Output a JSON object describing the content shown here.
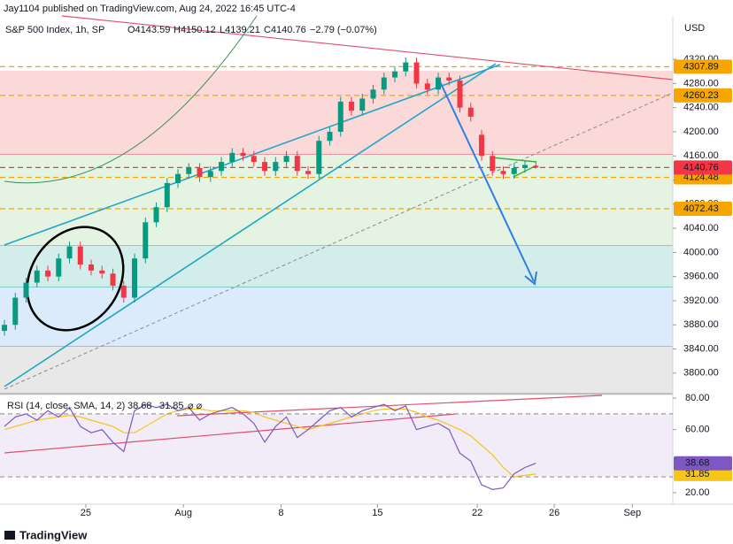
{
  "header": {
    "published": "Jay1104 published on TradingView.com, Aug 24, 2022 16:45 UTC-4",
    "brand": "TradingView"
  },
  "chart_data": [
    {
      "type": "candlestick",
      "title": "S&P 500 Index, 1h, SP",
      "currency": "USD",
      "quote": {
        "open": "O4143.59",
        "high": "H4150.12",
        "low": "L4139.21",
        "close": "C4140.76",
        "change": "−2.79 (−0.07%)"
      },
      "up_color": "#089981",
      "down_color": "#f23645",
      "open": [
        3870,
        3880,
        3925,
        3950,
        3970,
        3960,
        3990,
        4010,
        3980,
        3970,
        3965,
        3945,
        3925,
        3990,
        4050,
        4075,
        4115,
        4130,
        4140,
        4125,
        4135,
        4150,
        4165,
        4160,
        4150,
        4135,
        4150,
        4160,
        4135,
        4130,
        4185,
        4200,
        4250,
        4235,
        4255,
        4270,
        4290,
        4300,
        4315,
        4280,
        4270,
        4290,
        4285,
        4240,
        4195,
        4160,
        4135,
        4130,
        4140,
        4143.59
      ],
      "high": [
        3888,
        3933,
        3958,
        3978,
        3978,
        3998,
        4018,
        4018,
        3988,
        3978,
        3973,
        3953,
        3998,
        4058,
        4083,
        4123,
        4138,
        4148,
        4148,
        4143,
        4158,
        4173,
        4173,
        4168,
        4158,
        4158,
        4168,
        4168,
        4143,
        4193,
        4208,
        4258,
        4258,
        4263,
        4278,
        4298,
        4308,
        4323,
        4323,
        4288,
        4298,
        4298,
        4293,
        4248,
        4203,
        4168,
        4143,
        4148,
        4153,
        4150.12
      ],
      "low": [
        3862,
        3872,
        3917,
        3942,
        3952,
        3952,
        3982,
        3972,
        3962,
        3957,
        3937,
        3917,
        3917,
        3982,
        4042,
        4067,
        4107,
        4122,
        4117,
        4117,
        4127,
        4142,
        4152,
        4142,
        4127,
        4127,
        4142,
        4127,
        4122,
        4122,
        4177,
        4192,
        4227,
        4227,
        4247,
        4262,
        4282,
        4292,
        4272,
        4262,
        4262,
        4277,
        4232,
        4217,
        4152,
        4127,
        4122,
        4122,
        4132,
        4139.21
      ],
      "close": [
        3880,
        3925,
        3950,
        3970,
        3960,
        3990,
        4010,
        3980,
        3970,
        3965,
        3945,
        3925,
        3990,
        4050,
        4075,
        4115,
        4130,
        4140,
        4125,
        4135,
        4150,
        4165,
        4160,
        4150,
        4135,
        4150,
        4160,
        4135,
        4130,
        4185,
        4200,
        4250,
        4235,
        4255,
        4270,
        4290,
        4300,
        4315,
        4280,
        4270,
        4290,
        4285,
        4240,
        4225,
        4160,
        4135,
        4130,
        4140,
        4145,
        4140.76
      ],
      "xlim": [
        -0.41,
        61.63
      ],
      "xticks": [
        {
          "value": 7.5,
          "label": "25"
        },
        {
          "value": 16.5,
          "label": "Aug"
        },
        {
          "value": 25.5,
          "label": "8"
        },
        {
          "value": 34.4,
          "label": "15"
        },
        {
          "value": 43.6,
          "label": "22"
        },
        {
          "value": 50.7,
          "label": "26"
        },
        {
          "value": 57.9,
          "label": "Sep"
        }
      ],
      "ylim": [
        3766,
        4392
      ],
      "yticks": [
        {
          "value": 3800,
          "label": "3800.00"
        },
        {
          "value": 3840,
          "label": "3840.00"
        },
        {
          "value": 3880,
          "label": "3880.00"
        },
        {
          "value": 3920,
          "label": "3920.00"
        },
        {
          "value": 3960,
          "label": "3960.00"
        },
        {
          "value": 4000,
          "label": "4000.00"
        },
        {
          "value": 4040,
          "label": "4040.00"
        },
        {
          "value": 4080,
          "label": "4080.00"
        },
        {
          "value": 4120,
          "label": "4120.00"
        },
        {
          "value": 4160,
          "label": "4160.00"
        },
        {
          "value": 4200,
          "label": "4200.00"
        },
        {
          "value": 4240,
          "label": "4240.00"
        },
        {
          "value": 4280,
          "label": "4280.00"
        },
        {
          "value": 4320,
          "label": "4320.00"
        }
      ],
      "zones": [
        {
          "from": 4301,
          "to": 4162,
          "color": "#fbd9d9",
          "line": "#e0506a"
        },
        {
          "from": 4162,
          "to": 4011,
          "color": "#e4f3e2",
          "line": "#4caf50"
        },
        {
          "from": 4011,
          "to": 3942,
          "color": "#d3eeea",
          "line": "#1f9e8f"
        },
        {
          "from": 3942,
          "to": 3844,
          "color": "#dcebfb",
          "line": "#5b9bd5"
        },
        {
          "from": 3844,
          "to": 3766,
          "color": "#e8e8e8",
          "line": "#9e9e9e"
        }
      ],
      "levels": [
        {
          "value": 4307.89,
          "color": "#f7a600"
        },
        {
          "value": 4260.23,
          "color": "#f7a600"
        },
        {
          "value": 4124.48,
          "color": "#f7a600"
        },
        {
          "value": 4072.43,
          "color": "#f7a600"
        },
        {
          "value": 4140.76,
          "color": "#f23645"
        }
      ]
    },
    {
      "type": "line",
      "title": "RSI (14, close, SMA, 14, 2)",
      "ylim": [
        12.7,
        81.7
      ],
      "yticks": [
        {
          "value": 20,
          "label": "20.00"
        },
        {
          "value": 60,
          "label": "60.00"
        },
        {
          "value": 80,
          "label": "80.00"
        }
      ],
      "band": [
        30,
        70
      ],
      "series": [
        {
          "name": "RSI",
          "color": "#7e57c2",
          "current": 38.68,
          "values": [
            62,
            68,
            70,
            66,
            72,
            68,
            74,
            62,
            58,
            60,
            52,
            46,
            72,
            76,
            74,
            76,
            72,
            74,
            66,
            70,
            72,
            74,
            70,
            64,
            52,
            62,
            68,
            55,
            60,
            66,
            72,
            74,
            68,
            72,
            74,
            76,
            72,
            75,
            60,
            62,
            64,
            60,
            45,
            40,
            25,
            22,
            23,
            32,
            36,
            38.68
          ]
        },
        {
          "name": "SMA",
          "color": "#f5c518",
          "current": 31.85,
          "values": [
            60,
            62,
            64,
            66,
            67,
            68,
            69,
            68,
            66,
            64,
            62,
            58,
            58,
            62,
            66,
            70,
            72,
            73,
            73,
            72,
            72,
            72,
            72,
            71,
            68,
            66,
            64,
            62,
            60,
            62,
            64,
            66,
            68,
            70,
            72,
            73,
            73,
            73,
            71,
            68,
            66,
            63,
            60,
            56,
            50,
            44,
            36,
            30,
            31,
            31.85
          ]
        }
      ]
    }
  ]
}
